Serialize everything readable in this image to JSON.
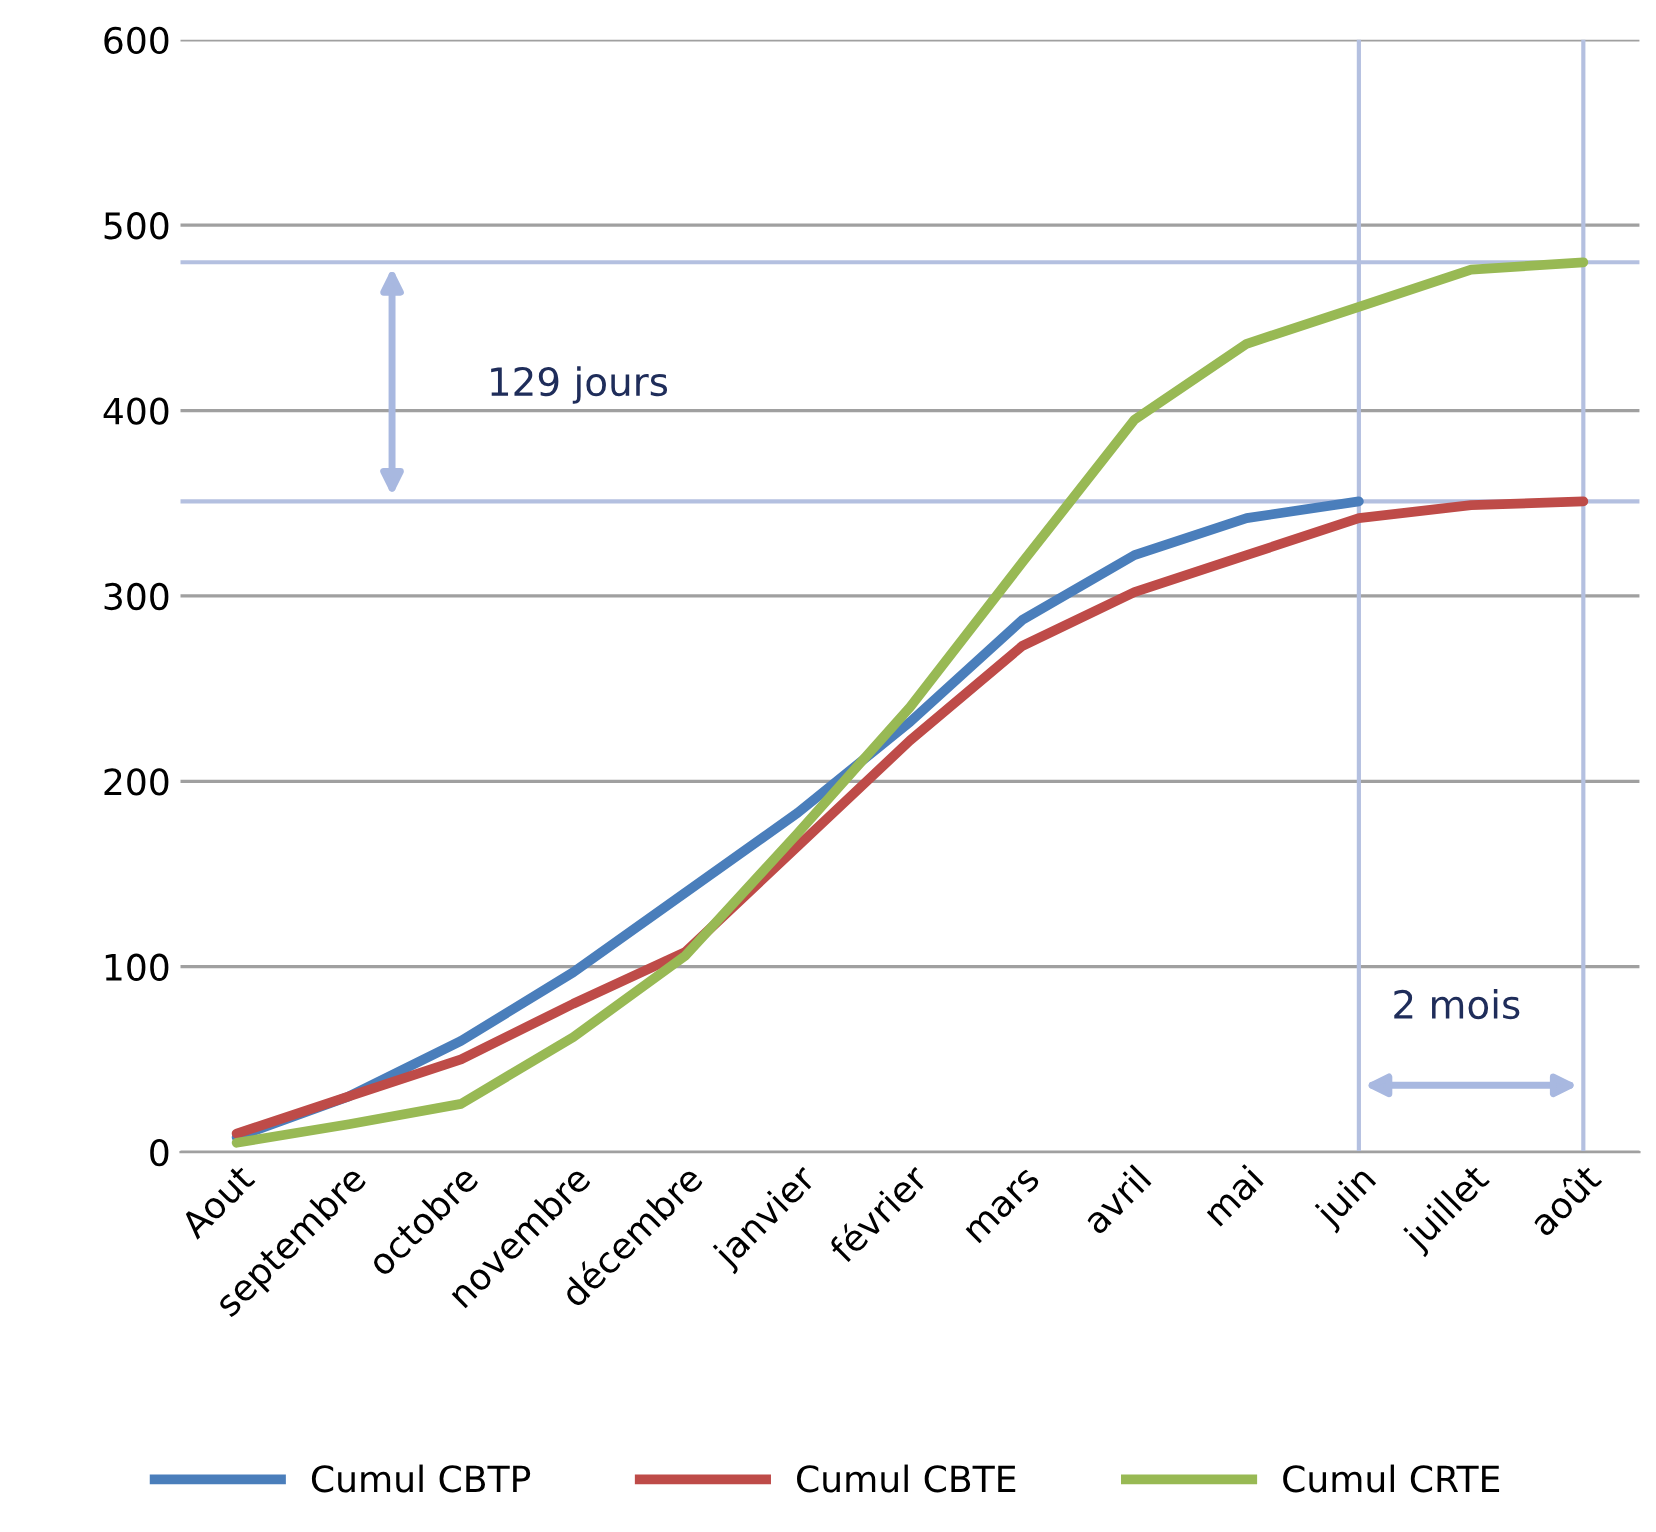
{
  "chart_data": {
    "type": "line",
    "categories": [
      "Aout",
      "septembre",
      "octobre",
      "novembre",
      "décembre",
      "janvier",
      "février",
      "mars",
      "avril",
      "mai",
      "juin",
      "juillet",
      "août"
    ],
    "series": [
      {
        "name": "Cumul CBTP",
        "color": "#4a7ebb",
        "values": [
          8,
          30,
          60,
          97,
          140,
          183,
          232,
          287,
          322,
          342,
          351,
          null,
          null
        ]
      },
      {
        "name": "Cumul CBTE",
        "color": "#be4b48",
        "values": [
          10,
          30,
          50,
          80,
          108,
          165,
          222,
          273,
          302,
          322,
          342,
          349,
          351
        ]
      },
      {
        "name": "Cumul CRTE",
        "color": "#98b954",
        "values": [
          5,
          15,
          26,
          62,
          106,
          172,
          240,
          318,
          395,
          436,
          456,
          476,
          480
        ]
      }
    ],
    "ylim": [
      0,
      600
    ],
    "yticks": [
      0,
      100,
      200,
      300,
      400,
      500,
      600
    ],
    "grid": "y",
    "legend": "bottom",
    "marker": "none",
    "line_style": "solid",
    "ref_lines": [
      {
        "axis": "y",
        "value": 480,
        "color": "#b4c0e0"
      },
      {
        "axis": "y",
        "value": 351,
        "color": "#b4c0e0"
      },
      {
        "axis": "x",
        "value": "juin",
        "color": "#b4c0e0"
      },
      {
        "axis": "x",
        "value": "août",
        "color": "#b4c0e0"
      }
    ],
    "annotations": [
      "129 jours",
      "2 mois"
    ]
  }
}
